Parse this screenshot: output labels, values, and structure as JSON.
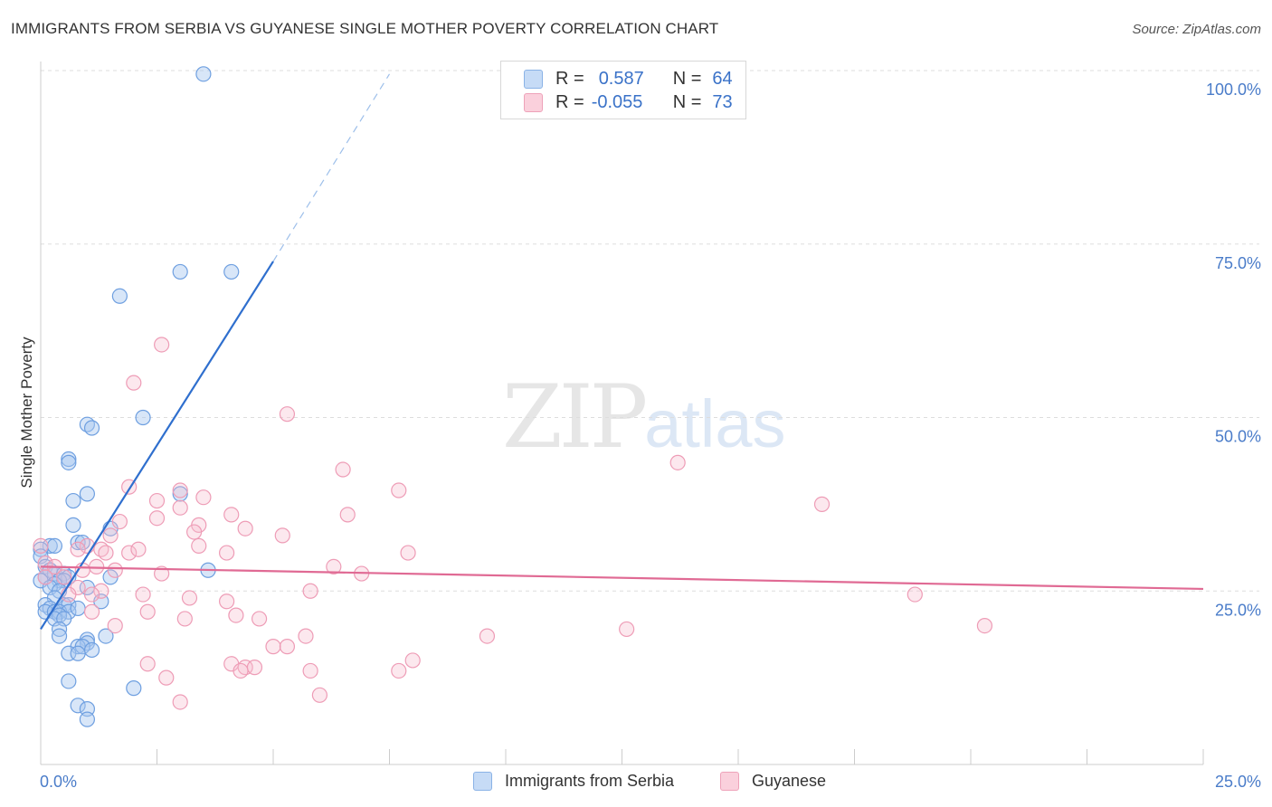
{
  "header": {
    "title": "IMMIGRANTS FROM SERBIA VS GUYANESE SINGLE MOTHER POVERTY CORRELATION CHART",
    "source": "Source: ZipAtlas.com"
  },
  "watermark": {
    "zip": "ZIP",
    "atlas": "atlas"
  },
  "legend": {
    "serbia": {
      "r_label": "R =",
      "r_value": "0.587",
      "n_label": "N =",
      "n_value": "64",
      "color": "#a9c8f0"
    },
    "guyanese": {
      "r_label": "R =",
      "r_value": "-0.055",
      "n_label": "N =",
      "n_value": "73",
      "color": "#f6bccd"
    }
  },
  "chart_data": {
    "type": "scatter",
    "title": "IMMIGRANTS FROM SERBIA VS GUYANESE SINGLE MOTHER POVERTY CORRELATION CHART",
    "xlabel": "",
    "ylabel": "Single Mother Poverty",
    "xlim": [
      0,
      25
    ],
    "ylim": [
      0,
      100
    ],
    "x_tick_labels": [
      "0.0%",
      "25.0%"
    ],
    "y_tick_labels": [
      "25.0%",
      "50.0%",
      "75.0%",
      "100.0%"
    ],
    "y_ticks": [
      25,
      50,
      75,
      100
    ],
    "grid": true,
    "series": [
      {
        "name": "Immigrants from Serbia",
        "color": "#7aaae6",
        "line_color": "#2f6fce",
        "trend": {
          "x0": 0,
          "y0": 19.5,
          "x1": 5,
          "y1": 72.5,
          "dash_to_x": 7.5,
          "dash_to_y": 99.5
        },
        "points": [
          [
            3.5,
            99.5
          ],
          [
            3.0,
            71.0
          ],
          [
            4.1,
            71.0
          ],
          [
            1.7,
            67.5
          ],
          [
            2.2,
            50.0
          ],
          [
            1.0,
            49.0
          ],
          [
            1.1,
            48.5
          ],
          [
            0.6,
            44.0
          ],
          [
            0.6,
            43.5
          ],
          [
            1.0,
            39.0
          ],
          [
            3.0,
            39.0
          ],
          [
            0.7,
            38.0
          ],
          [
            0.7,
            34.5
          ],
          [
            1.5,
            34.0
          ],
          [
            0.2,
            31.5
          ],
          [
            0.8,
            32.0
          ],
          [
            0.9,
            32.0
          ],
          [
            0.3,
            31.5
          ],
          [
            0.0,
            31.0
          ],
          [
            0.0,
            30.0
          ],
          [
            0.1,
            28.5
          ],
          [
            0.2,
            28.0
          ],
          [
            0.3,
            27.5
          ],
          [
            0.5,
            27.5
          ],
          [
            0.6,
            27.0
          ],
          [
            0.1,
            27.0
          ],
          [
            0.4,
            26.5
          ],
          [
            0.5,
            26.5
          ],
          [
            0.0,
            26.5
          ],
          [
            0.3,
            26.0
          ],
          [
            1.5,
            27.0
          ],
          [
            3.6,
            28.0
          ],
          [
            0.2,
            25.5
          ],
          [
            0.4,
            25.0
          ],
          [
            1.0,
            25.5
          ],
          [
            0.3,
            24.0
          ],
          [
            1.3,
            23.5
          ],
          [
            0.1,
            23.0
          ],
          [
            0.5,
            23.0
          ],
          [
            0.6,
            23.0
          ],
          [
            0.2,
            22.5
          ],
          [
            0.1,
            22.0
          ],
          [
            0.3,
            22.0
          ],
          [
            0.4,
            22.0
          ],
          [
            0.6,
            22.0
          ],
          [
            0.8,
            22.5
          ],
          [
            0.4,
            21.5
          ],
          [
            0.3,
            21.0
          ],
          [
            0.5,
            21.0
          ],
          [
            0.4,
            19.5
          ],
          [
            0.4,
            18.5
          ],
          [
            1.4,
            18.5
          ],
          [
            1.0,
            18.0
          ],
          [
            1.0,
            17.5
          ],
          [
            0.8,
            17.0
          ],
          [
            0.9,
            17.0
          ],
          [
            1.1,
            16.5
          ],
          [
            0.6,
            16.0
          ],
          [
            0.8,
            16.0
          ],
          [
            0.6,
            12.0
          ],
          [
            2.0,
            11.0
          ],
          [
            0.8,
            8.5
          ],
          [
            1.0,
            8.0
          ],
          [
            1.0,
            6.5
          ]
        ]
      },
      {
        "name": "Guyanese",
        "color": "#f2a4bc",
        "line_color": "#e06a94",
        "trend": {
          "x0": 0,
          "y0": 28.5,
          "x1": 25,
          "y1": 25.3
        },
        "points": [
          [
            2.6,
            60.5
          ],
          [
            2.0,
            55.0
          ],
          [
            5.3,
            50.5
          ],
          [
            13.7,
            43.5
          ],
          [
            6.5,
            42.5
          ],
          [
            7.7,
            39.5
          ],
          [
            3.0,
            39.5
          ],
          [
            1.9,
            40.0
          ],
          [
            3.5,
            38.5
          ],
          [
            2.5,
            38.0
          ],
          [
            16.8,
            37.5
          ],
          [
            3.0,
            37.0
          ],
          [
            4.1,
            36.0
          ],
          [
            6.6,
            36.0
          ],
          [
            1.7,
            35.0
          ],
          [
            2.5,
            35.5
          ],
          [
            3.4,
            34.5
          ],
          [
            4.4,
            34.0
          ],
          [
            3.3,
            33.5
          ],
          [
            1.5,
            33.0
          ],
          [
            5.2,
            33.0
          ],
          [
            3.4,
            31.5
          ],
          [
            1.3,
            31.0
          ],
          [
            0.0,
            31.5
          ],
          [
            1.0,
            31.5
          ],
          [
            0.8,
            31.0
          ],
          [
            1.4,
            30.5
          ],
          [
            1.9,
            30.5
          ],
          [
            2.1,
            31.0
          ],
          [
            7.9,
            30.5
          ],
          [
            4.0,
            30.5
          ],
          [
            0.1,
            29.0
          ],
          [
            0.3,
            28.5
          ],
          [
            1.2,
            28.5
          ],
          [
            1.6,
            28.0
          ],
          [
            0.9,
            28.0
          ],
          [
            6.3,
            28.5
          ],
          [
            6.9,
            27.5
          ],
          [
            2.6,
            27.5
          ],
          [
            0.5,
            27.0
          ],
          [
            0.1,
            27.0
          ],
          [
            1.3,
            25.0
          ],
          [
            0.8,
            25.5
          ],
          [
            1.1,
            24.5
          ],
          [
            0.6,
            24.5
          ],
          [
            2.2,
            24.5
          ],
          [
            5.8,
            25.0
          ],
          [
            18.8,
            24.5
          ],
          [
            3.2,
            24.0
          ],
          [
            4.0,
            23.5
          ],
          [
            1.1,
            22.0
          ],
          [
            2.3,
            22.0
          ],
          [
            4.2,
            21.5
          ],
          [
            3.1,
            21.0
          ],
          [
            4.7,
            21.0
          ],
          [
            1.6,
            20.0
          ],
          [
            20.3,
            20.0
          ],
          [
            12.6,
            19.5
          ],
          [
            5.7,
            18.5
          ],
          [
            9.6,
            18.5
          ],
          [
            5.0,
            17.0
          ],
          [
            5.3,
            17.0
          ],
          [
            2.3,
            14.5
          ],
          [
            4.1,
            14.5
          ],
          [
            4.4,
            14.0
          ],
          [
            4.6,
            14.0
          ],
          [
            4.3,
            13.5
          ],
          [
            5.8,
            13.5
          ],
          [
            8.0,
            15.0
          ],
          [
            2.7,
            12.5
          ],
          [
            6.0,
            10.0
          ],
          [
            3.0,
            9.0
          ],
          [
            7.7,
            13.5
          ]
        ]
      }
    ]
  },
  "bottom_legend": {
    "serbia_label": "Immigrants from Serbia",
    "guyanese_label": "Guyanese"
  }
}
